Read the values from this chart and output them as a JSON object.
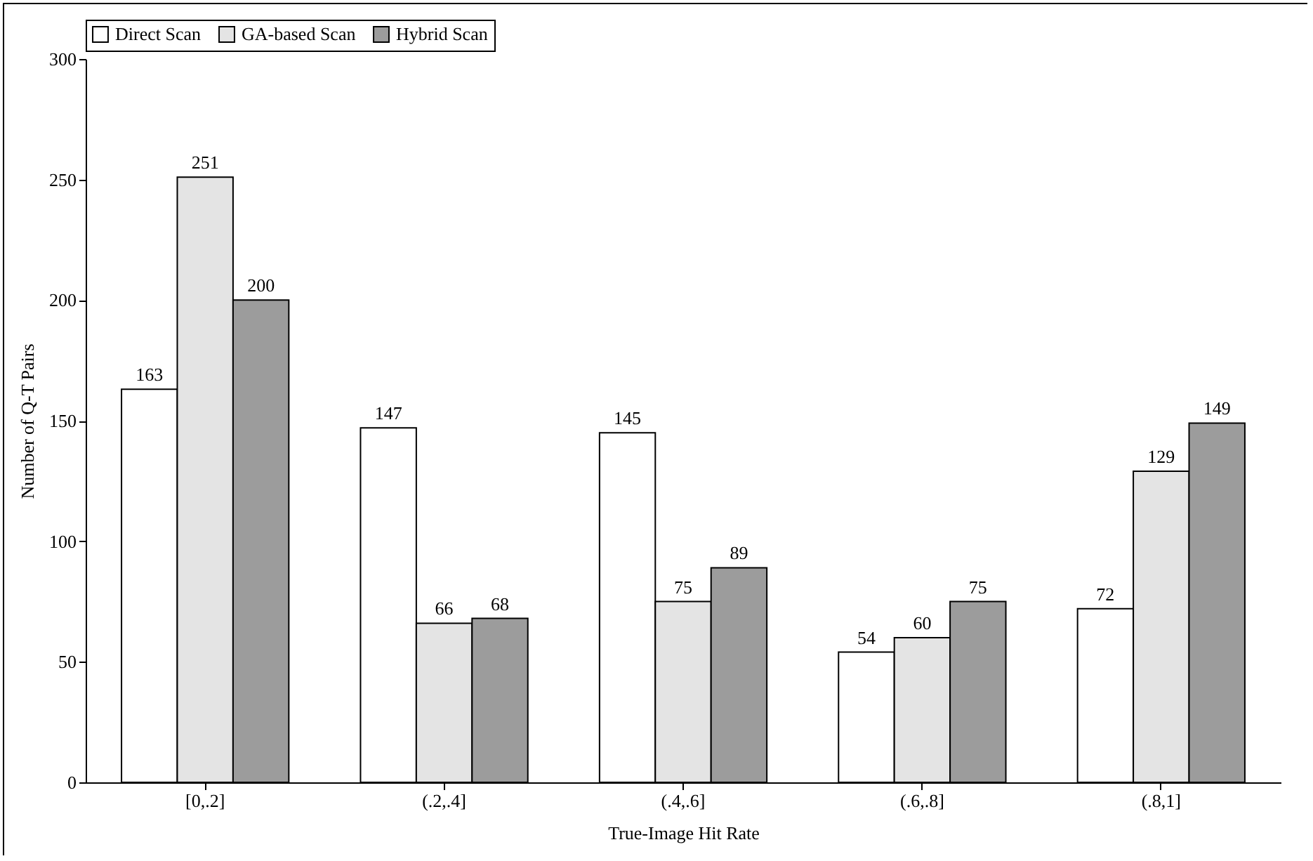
{
  "chart_data": {
    "type": "bar",
    "xlabel": "True-Image Hit Rate",
    "ylabel": "Number of Q-T Pairs",
    "categories": [
      "[0,.2]",
      "(.2,.4]",
      "(.4,.6]",
      "(.6,.8]",
      "(.8,1]"
    ],
    "series": [
      {
        "name": "Direct Scan",
        "color": "#ffffff",
        "values": [
          163,
          147,
          145,
          54,
          72
        ]
      },
      {
        "name": "GA-based Scan",
        "color": "#e4e4e4",
        "values": [
          251,
          66,
          75,
          60,
          129
        ]
      },
      {
        "name": "Hybrid Scan",
        "color": "#9c9c9c",
        "values": [
          200,
          68,
          89,
          75,
          149
        ]
      }
    ],
    "ylim": [
      0,
      300
    ],
    "yticks": [
      0,
      50,
      100,
      150,
      200,
      250,
      300
    ],
    "data_labels": true,
    "legend": "top",
    "grid": false
  }
}
